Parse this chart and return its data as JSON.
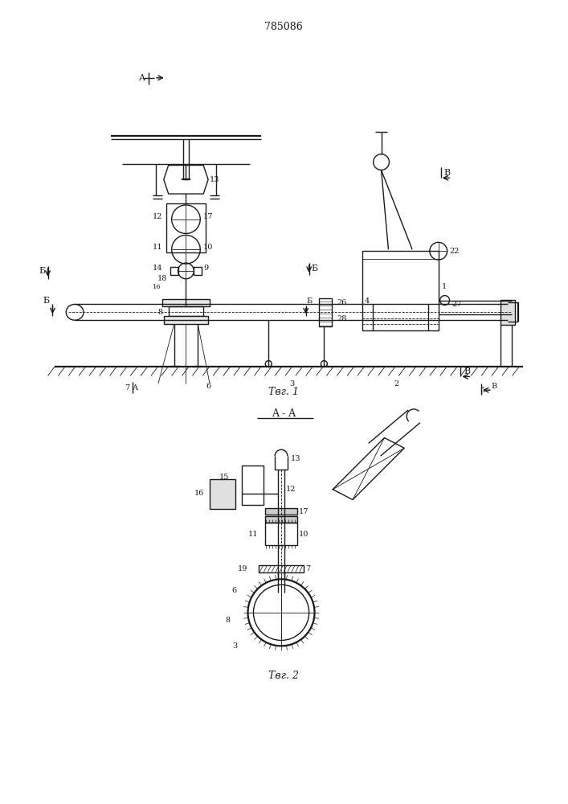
{
  "title": "785086",
  "bg_color": "#ffffff",
  "line_color": "#1a1a1a",
  "lw": 1.0,
  "lw_thin": 0.6,
  "lw_thick": 1.6,
  "fig1_cap": "Τвг. 1",
  "fig2_cap": "Τвг. 2",
  "fig2_hdr": "A - A"
}
